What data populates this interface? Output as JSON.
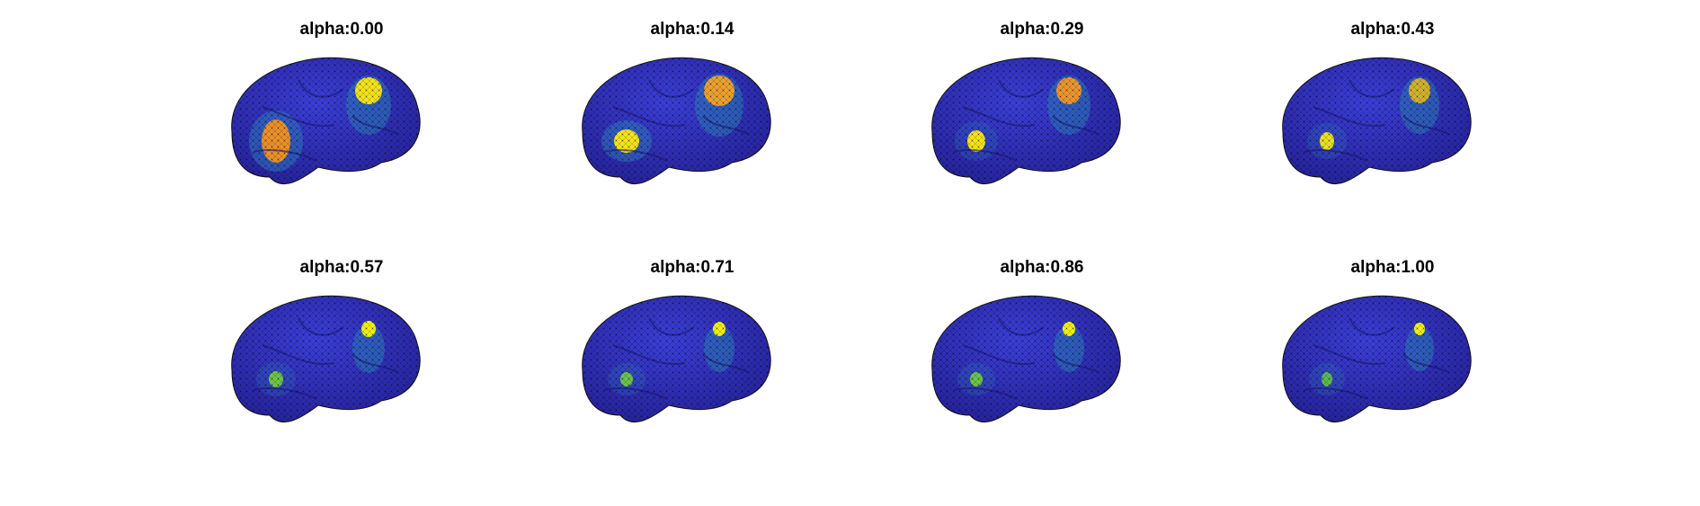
{
  "panels": [
    {
      "title": "alpha:0.00"
    },
    {
      "title": "alpha:0.14"
    },
    {
      "title": "alpha:0.29"
    },
    {
      "title": "alpha:0.43"
    },
    {
      "title": "alpha:0.57"
    },
    {
      "title": "alpha:0.71"
    },
    {
      "title": "alpha:0.86"
    },
    {
      "title": "alpha:1.00"
    }
  ]
}
